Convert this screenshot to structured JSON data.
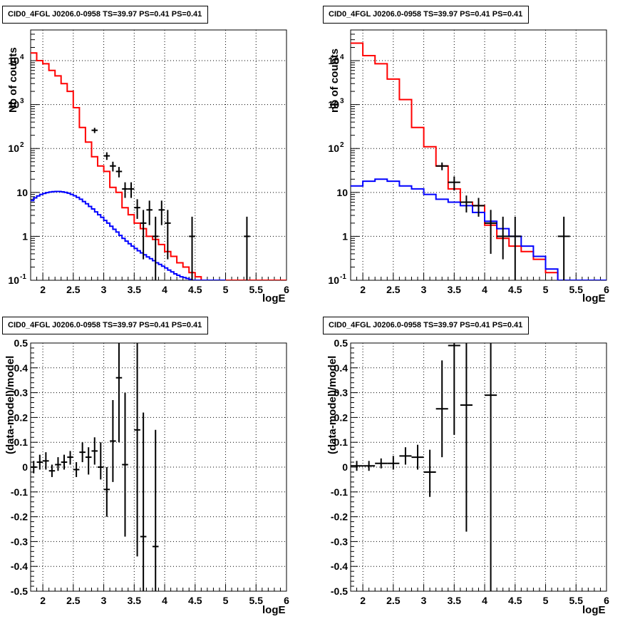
{
  "chart_data": [
    {
      "type": "line",
      "panel": "top-left",
      "title": "CID0_4FGL J0206.0-0958 TS=39.97 PS=0.41 PS=0.41",
      "xlabel": "logE",
      "ylabel": "Nb of counts",
      "xlim": [
        1.8,
        6.0
      ],
      "ylim": [
        0.1,
        50000
      ],
      "yscale": "log",
      "grid": true,
      "x_ticks": [
        "2",
        "2.5",
        "3",
        "3.5",
        "4",
        "4.5",
        "5",
        "5.5",
        "6"
      ],
      "y_ticks": [
        "10⁻¹",
        "1",
        "10",
        "10²",
        "10³",
        "10⁴"
      ],
      "series": [
        {
          "color": "#ff0000",
          "style": "step",
          "edges": [
            1.8,
            1.9,
            2.0,
            2.1,
            2.2,
            2.3,
            2.4,
            2.5,
            2.6,
            2.7,
            2.8,
            2.9,
            3.0,
            3.1,
            3.2,
            3.3,
            3.4,
            3.5,
            3.6,
            3.7,
            3.8,
            3.9,
            4.0,
            4.1,
            4.2,
            4.3,
            4.4,
            4.5,
            4.6,
            4.7,
            4.8,
            4.9,
            5.0,
            5.1,
            5.2,
            5.3,
            5.4,
            5.5,
            5.6,
            5.7,
            5.8,
            5.9,
            6.0
          ],
          "values": [
            15000,
            10000,
            8500,
            6000,
            4500,
            3000,
            2000,
            850,
            300,
            140,
            65,
            40,
            30,
            13,
            10,
            4.5,
            3.1,
            2.0,
            1.5,
            1.0,
            0.85,
            0.65,
            0.45,
            0.35,
            0.25,
            0.2,
            0.15,
            0.12,
            0.1,
            0.1,
            0.1,
            0.1,
            0.1,
            0.1,
            0.1,
            0.1,
            0.1,
            0.1,
            0.1,
            0.1,
            0.1,
            0.1
          ]
        },
        {
          "color": "#0000ff",
          "style": "step",
          "edges": [
            1.8,
            1.85,
            1.9,
            1.95,
            2.0,
            2.05,
            2.1,
            2.15,
            2.2,
            2.25,
            2.3,
            2.35,
            2.4,
            2.45,
            2.5,
            2.55,
            2.6,
            2.65,
            2.7,
            2.75,
            2.8,
            2.85,
            2.9,
            2.95,
            3.0,
            3.05,
            3.1,
            3.15,
            3.2,
            3.25,
            3.3,
            3.35,
            3.4,
            3.45,
            3.5,
            3.55,
            3.6,
            3.65,
            3.7,
            3.75,
            3.8,
            3.85,
            3.9,
            3.95,
            4.0,
            4.05,
            4.1,
            4.15,
            4.2,
            4.25,
            4.3,
            4.35,
            4.4,
            4.45,
            4.5,
            4.55,
            4.6,
            4.65,
            4.7,
            4.75,
            4.8,
            4.85,
            4.9,
            4.95,
            5.0
          ],
          "values": [
            6.5,
            7.5,
            8.3,
            9.0,
            9.5,
            9.9,
            10.2,
            10.4,
            10.5,
            10.5,
            10.3,
            10.0,
            9.6,
            9.0,
            8.4,
            7.7,
            7.0,
            6.2,
            5.5,
            4.8,
            4.2,
            3.6,
            3.1,
            2.7,
            2.3,
            2.0,
            1.7,
            1.45,
            1.25,
            1.05,
            0.9,
            0.78,
            0.68,
            0.6,
            0.53,
            0.47,
            0.42,
            0.38,
            0.34,
            0.31,
            0.28,
            0.25,
            0.23,
            0.21,
            0.19,
            0.17,
            0.155,
            0.14,
            0.13,
            0.12,
            0.115,
            0.11,
            0.105,
            0.1,
            0.1,
            0.1,
            0.1,
            0.1,
            0.1,
            0.1,
            0.1,
            0.1,
            0.1,
            0.1
          ]
        }
      ],
      "points": [
        {
          "x": 2.85,
          "y": 260,
          "xerr": 0.05,
          "ylo": 225,
          "yhi": 295
        },
        {
          "x": 3.05,
          "y": 68,
          "xerr": 0.05,
          "ylo": 55,
          "yhi": 82
        },
        {
          "x": 3.15,
          "y": 40,
          "xerr": 0.05,
          "ylo": 30,
          "yhi": 50
        },
        {
          "x": 3.25,
          "y": 30,
          "xerr": 0.05,
          "ylo": 22,
          "yhi": 38
        },
        {
          "x": 3.35,
          "y": 12,
          "xerr": 0.05,
          "ylo": 7.5,
          "yhi": 17
        },
        {
          "x": 3.45,
          "y": 12,
          "xerr": 0.05,
          "ylo": 7.5,
          "yhi": 17
        },
        {
          "x": 3.55,
          "y": 4.5,
          "xerr": 0.05,
          "ylo": 2.5,
          "yhi": 7
        },
        {
          "x": 3.65,
          "y": 2.0,
          "xerr": 0.05,
          "ylo": 0.3,
          "yhi": 4.0
        },
        {
          "x": 3.75,
          "y": 4.0,
          "xerr": 0.05,
          "ylo": 1.8,
          "yhi": 6.5
        },
        {
          "x": 3.85,
          "y": 1.0,
          "xerr": 0.05,
          "ylo": 0.1,
          "yhi": 2.8
        },
        {
          "x": 3.95,
          "y": 4.0,
          "xerr": 0.05,
          "ylo": 1.8,
          "yhi": 6.5
        },
        {
          "x": 4.05,
          "y": 2.0,
          "xerr": 0.05,
          "ylo": 0.3,
          "yhi": 4.0
        },
        {
          "x": 4.45,
          "y": 1.0,
          "xerr": 0.05,
          "ylo": 0.1,
          "yhi": 2.8
        },
        {
          "x": 5.35,
          "y": 1.0,
          "xerr": 0.05,
          "ylo": 0.1,
          "yhi": 2.8
        }
      ]
    },
    {
      "type": "line",
      "panel": "top-right",
      "title": "CID0_4FGL J0206.0-0958 TS=39.97 PS=0.41 PS=0.41",
      "xlabel": "logE",
      "ylabel": "nb of counts",
      "xlim": [
        1.8,
        6.0
      ],
      "ylim": [
        0.1,
        50000
      ],
      "yscale": "log",
      "grid": true,
      "x_ticks": [
        "2",
        "2.5",
        "3",
        "3.5",
        "4",
        "4.5",
        "5",
        "5.5",
        "6"
      ],
      "y_ticks": [
        "10⁻¹",
        "1",
        "10",
        "10²",
        "10³",
        "10⁴"
      ],
      "series": [
        {
          "color": "#ff0000",
          "style": "step",
          "edges": [
            1.8,
            2.0,
            2.2,
            2.4,
            2.6,
            2.8,
            3.0,
            3.2,
            3.4,
            3.6,
            3.8,
            4.0,
            4.2,
            4.4,
            4.6,
            4.8,
            5.0,
            5.2,
            5.4,
            5.6,
            5.8,
            6.0
          ],
          "values": [
            25000,
            13000,
            8500,
            3800,
            1300,
            300,
            110,
            40,
            12,
            6,
            5,
            1.8,
            0.9,
            0.6,
            0.45,
            0.3,
            0.15,
            0.1,
            0.1,
            0.1,
            0.1
          ]
        },
        {
          "color": "#0000ff",
          "style": "step",
          "edges": [
            1.8,
            2.0,
            2.2,
            2.4,
            2.6,
            2.8,
            3.0,
            3.2,
            3.4,
            3.6,
            3.8,
            4.0,
            4.2,
            4.4,
            4.6,
            4.8,
            5.0,
            5.2,
            5.4,
            5.6,
            5.8,
            6.0
          ],
          "values": [
            14,
            18,
            20,
            18,
            14,
            12,
            9,
            7,
            6,
            5,
            3.5,
            2.2,
            1.5,
            1.0,
            0.6,
            0.35,
            0.18,
            0.1,
            0.1,
            0.1,
            0.1
          ]
        }
      ],
      "points": [
        {
          "x": 3.3,
          "y": 40,
          "xerr": 0.1,
          "ylo": 32,
          "yhi": 48
        },
        {
          "x": 3.5,
          "y": 17,
          "xerr": 0.1,
          "ylo": 11,
          "yhi": 23
        },
        {
          "x": 3.7,
          "y": 6.0,
          "xerr": 0.1,
          "ylo": 3.5,
          "yhi": 8.5
        },
        {
          "x": 3.9,
          "y": 5.0,
          "xerr": 0.1,
          "ylo": 2.8,
          "yhi": 7.5
        },
        {
          "x": 4.1,
          "y": 2.0,
          "xerr": 0.1,
          "ylo": 0.4,
          "yhi": 4.0
        },
        {
          "x": 4.3,
          "y": 1.0,
          "xerr": 0.1,
          "ylo": 0.3,
          "yhi": 2.8
        },
        {
          "x": 4.5,
          "y": 1.0,
          "xerr": 0.1,
          "ylo": 0.1,
          "yhi": 2.8
        },
        {
          "x": 5.3,
          "y": 1.0,
          "xerr": 0.1,
          "ylo": 0.1,
          "yhi": 2.8
        }
      ]
    },
    {
      "type": "scatter",
      "panel": "bottom-left",
      "title": "CID0_4FGL J0206.0-0958 TS=39.97 PS=0.41 PS=0.41",
      "xlabel": "logE",
      "ylabel": "(data-model)/model",
      "xlim": [
        1.8,
        6.0
      ],
      "ylim": [
        -0.5,
        0.5
      ],
      "grid": true,
      "x_ticks": [
        "2",
        "2.5",
        "3",
        "3.5",
        "4",
        "4.5",
        "5",
        "5.5",
        "6"
      ],
      "y_ticks": [
        "-0.5",
        "-0.4",
        "-0.3",
        "-0.2",
        "-0.1",
        "0",
        "0.1",
        "0.2",
        "0.3",
        "0.4",
        "0.5"
      ],
      "points": [
        {
          "x": 1.85,
          "y": 0.0,
          "xerr": 0.05,
          "ylo": -0.025,
          "yhi": 0.025
        },
        {
          "x": 1.95,
          "y": 0.02,
          "xerr": 0.05,
          "ylo": -0.01,
          "yhi": 0.05
        },
        {
          "x": 2.05,
          "y": 0.025,
          "xerr": 0.05,
          "ylo": -0.01,
          "yhi": 0.06
        },
        {
          "x": 2.15,
          "y": -0.015,
          "xerr": 0.05,
          "ylo": -0.04,
          "yhi": 0.01
        },
        {
          "x": 2.25,
          "y": 0.01,
          "xerr": 0.05,
          "ylo": -0.015,
          "yhi": 0.04
        },
        {
          "x": 2.35,
          "y": 0.02,
          "xerr": 0.05,
          "ylo": -0.01,
          "yhi": 0.05
        },
        {
          "x": 2.45,
          "y": 0.04,
          "xerr": 0.05,
          "ylo": 0.01,
          "yhi": 0.065
        },
        {
          "x": 2.55,
          "y": -0.01,
          "xerr": 0.05,
          "ylo": -0.04,
          "yhi": 0.02
        },
        {
          "x": 2.65,
          "y": 0.06,
          "xerr": 0.05,
          "ylo": 0.02,
          "yhi": 0.1
        },
        {
          "x": 2.75,
          "y": 0.04,
          "xerr": 0.05,
          "ylo": -0.03,
          "yhi": 0.08
        },
        {
          "x": 2.85,
          "y": 0.065,
          "xerr": 0.05,
          "ylo": 0.01,
          "yhi": 0.12
        },
        {
          "x": 2.95,
          "y": 0.0,
          "xerr": 0.05,
          "ylo": -0.05,
          "yhi": 0.1
        },
        {
          "x": 3.05,
          "y": -0.09,
          "xerr": 0.05,
          "ylo": -0.2,
          "yhi": 0.0
        },
        {
          "x": 3.15,
          "y": 0.105,
          "xerr": 0.05,
          "ylo": -0.06,
          "yhi": 0.27
        },
        {
          "x": 3.25,
          "y": 0.36,
          "xerr": 0.05,
          "ylo": 0.1,
          "yhi": 0.5
        },
        {
          "x": 3.35,
          "y": 0.01,
          "xerr": 0.05,
          "ylo": -0.28,
          "yhi": 0.3
        },
        {
          "x": 3.55,
          "y": 0.15,
          "xerr": 0.05,
          "ylo": -0.36,
          "yhi": 0.5
        },
        {
          "x": 3.65,
          "y": -0.28,
          "xerr": 0.05,
          "ylo": -0.5,
          "yhi": 0.22
        },
        {
          "x": 3.85,
          "y": -0.32,
          "xerr": 0.05,
          "ylo": -0.5,
          "yhi": 0.15
        }
      ]
    },
    {
      "type": "scatter",
      "panel": "bottom-right",
      "title": "CID0_4FGL J0206.0-0958 TS=39.97 PS=0.41 PS=0.41",
      "xlabel": "logE",
      "ylabel": "(data-model)/model",
      "xlim": [
        1.8,
        6.0
      ],
      "ylim": [
        -0.5,
        0.5
      ],
      "grid": true,
      "x_ticks": [
        "2",
        "2.5",
        "3",
        "3.5",
        "4",
        "4.5",
        "5",
        "5.5",
        "6"
      ],
      "y_ticks": [
        "-0.5",
        "-0.4",
        "-0.3",
        "-0.2",
        "-0.1",
        "0",
        "0.1",
        "0.2",
        "0.3",
        "0.4",
        "0.5"
      ],
      "points": [
        {
          "x": 1.9,
          "y": 0.005,
          "xerr": 0.1,
          "ylo": -0.015,
          "yhi": 0.025
        },
        {
          "x": 2.1,
          "y": 0.005,
          "xerr": 0.1,
          "ylo": -0.015,
          "yhi": 0.025
        },
        {
          "x": 2.3,
          "y": 0.015,
          "xerr": 0.1,
          "ylo": -0.005,
          "yhi": 0.035
        },
        {
          "x": 2.5,
          "y": 0.015,
          "xerr": 0.1,
          "ylo": -0.01,
          "yhi": 0.045
        },
        {
          "x": 2.7,
          "y": 0.045,
          "xerr": 0.1,
          "ylo": 0.01,
          "yhi": 0.08
        },
        {
          "x": 2.9,
          "y": 0.04,
          "xerr": 0.1,
          "ylo": -0.01,
          "yhi": 0.09
        },
        {
          "x": 3.1,
          "y": -0.02,
          "xerr": 0.1,
          "ylo": -0.12,
          "yhi": 0.07
        },
        {
          "x": 3.3,
          "y": 0.235,
          "xerr": 0.1,
          "ylo": 0.04,
          "yhi": 0.43
        },
        {
          "x": 3.5,
          "y": 0.49,
          "xerr": 0.1,
          "ylo": 0.13,
          "yhi": 0.5
        },
        {
          "x": 3.7,
          "y": 0.25,
          "xerr": 0.1,
          "ylo": -0.26,
          "yhi": 0.5
        },
        {
          "x": 4.1,
          "y": 0.29,
          "xerr": 0.1,
          "ylo": -0.5,
          "yhi": 0.5
        }
      ]
    }
  ]
}
